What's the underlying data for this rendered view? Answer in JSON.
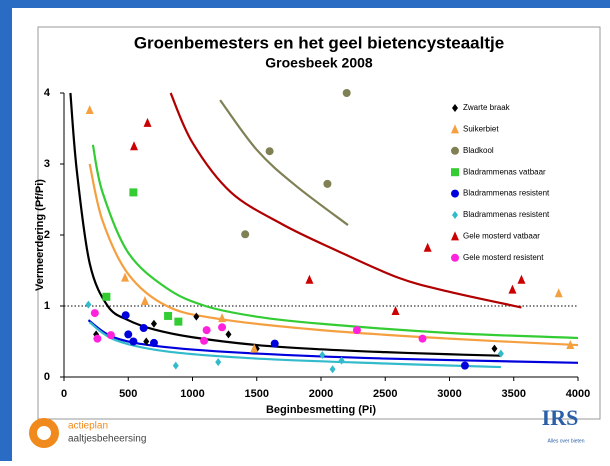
{
  "chart_data": {
    "type": "scatter",
    "title": "Groenbemesters en het geel bietencysteaaltje",
    "subtitle": "Groesbeek 2008",
    "x_label": "Beginbesmetting (Pi)",
    "y_label": "Vermeerdering (Pf/Pi)",
    "xlim": [
      0,
      4000
    ],
    "xticks": [
      0,
      500,
      1000,
      1500,
      2000,
      2500,
      3000,
      3500,
      4000
    ],
    "ylim": [
      0,
      4
    ],
    "yticks": [
      0,
      1,
      2,
      3,
      4
    ],
    "hline": 1,
    "series": [
      {
        "name": "Zwarte braak",
        "color": "#000000",
        "marker": "diamond",
        "x": [
          250,
          640,
          700,
          1030,
          1280,
          1500,
          3350
        ],
        "values": [
          0.6,
          0.5,
          0.75,
          0.85,
          0.6,
          0.4,
          0.4
        ]
      },
      {
        "name": "Suikerbiet",
        "color": "#f5a040",
        "marker": "triangle",
        "x": [
          200,
          475,
          630,
          1230,
          1480,
          3850,
          3940
        ],
        "values": [
          3.76,
          1.4,
          1.07,
          0.83,
          0.4,
          1.18,
          0.45
        ]
      },
      {
        "name": "Bladkool",
        "color": "#808055",
        "marker": "circle",
        "x": [
          2200,
          1600,
          2050,
          1410
        ],
        "values": [
          4.0,
          3.18,
          2.72,
          2.01
        ]
      },
      {
        "name": "Bladrammenas vatbaar",
        "color": "#33cc33",
        "marker": "square",
        "x": [
          330,
          540,
          810,
          890
        ],
        "values": [
          1.13,
          2.6,
          0.86,
          0.78
        ]
      },
      {
        "name": "Bladrammenas resistent",
        "color": "#0000dd",
        "marker": "circle",
        "x": [
          480,
          500,
          540,
          620,
          700,
          1640,
          3120
        ],
        "values": [
          0.87,
          0.6,
          0.5,
          0.69,
          0.48,
          0.47,
          0.16
        ]
      },
      {
        "name": "Bladrammenas resistent",
        "color": "#33bbcc",
        "marker": "diamond",
        "x": [
          190,
          870,
          1200,
          2010,
          2090,
          2160,
          3400
        ],
        "values": [
          1.02,
          0.16,
          0.21,
          0.31,
          0.11,
          0.23,
          0.33
        ]
      },
      {
        "name": "Gele mosterd vatbaar",
        "color": "#cc0000",
        "marker": "triangle",
        "x": [
          545,
          650,
          1910,
          2580,
          2830,
          3490,
          3560
        ],
        "values": [
          3.25,
          3.58,
          1.37,
          0.93,
          1.82,
          1.23,
          1.37
        ]
      },
      {
        "name": "Gele mosterd resistent",
        "color": "#ff22dd",
        "marker": "circle",
        "x": [
          240,
          260,
          365,
          1090,
          1110,
          1230,
          2280,
          2790
        ],
        "values": [
          0.9,
          0.54,
          0.59,
          0.51,
          0.66,
          0.7,
          0.66,
          0.54
        ]
      }
    ],
    "curves": [
      {
        "color": "#000000",
        "x": [
          50,
          100,
          200,
          340,
          500,
          700,
          1000,
          1500,
          2000,
          2500,
          3000,
          3400
        ],
        "values": [
          4,
          2.9,
          1.6,
          1.0,
          0.8,
          0.67,
          0.56,
          0.45,
          0.39,
          0.35,
          0.32,
          0.3
        ]
      },
      {
        "color": "#f5a040",
        "x": [
          200,
          300,
          500,
          800,
          1200,
          2000,
          3000,
          4000
        ],
        "values": [
          3.0,
          2.2,
          1.45,
          1.0,
          0.82,
          0.66,
          0.54,
          0.45
        ]
      },
      {
        "color": "#33cc33",
        "x": [
          225,
          300,
          500,
          800,
          1100,
          1500,
          2000,
          3000,
          4000
        ],
        "values": [
          3.27,
          2.6,
          1.75,
          1.25,
          1.0,
          0.85,
          0.75,
          0.62,
          0.55
        ]
      },
      {
        "color": "#b00000",
        "x": [
          830,
          1000,
          1300,
          1700,
          2100,
          2600,
          3000,
          3560
        ],
        "values": [
          4,
          3.3,
          2.6,
          2.15,
          1.8,
          1.4,
          1.2,
          0.98
        ]
      },
      {
        "color": "#808055",
        "x": [
          1215,
          1500,
          1800,
          2210
        ],
        "values": [
          3.9,
          3.2,
          2.7,
          2.14
        ]
      },
      {
        "color": "#0000dd",
        "x": [
          190,
          400,
          800,
          1500,
          2500,
          4000
        ],
        "values": [
          0.8,
          0.55,
          0.42,
          0.33,
          0.26,
          0.2
        ]
      },
      {
        "color": "#33bbcc",
        "x": [
          200,
          400,
          800,
          1500,
          2500,
          3400
        ],
        "values": [
          0.77,
          0.52,
          0.36,
          0.26,
          0.19,
          0.14
        ]
      }
    ]
  },
  "slide": {
    "logo_left": [
      "actieplan",
      "aaltjesbeheersing"
    ],
    "logo_right": "IRS",
    "logo_right_sub": "Alles over bieten"
  }
}
